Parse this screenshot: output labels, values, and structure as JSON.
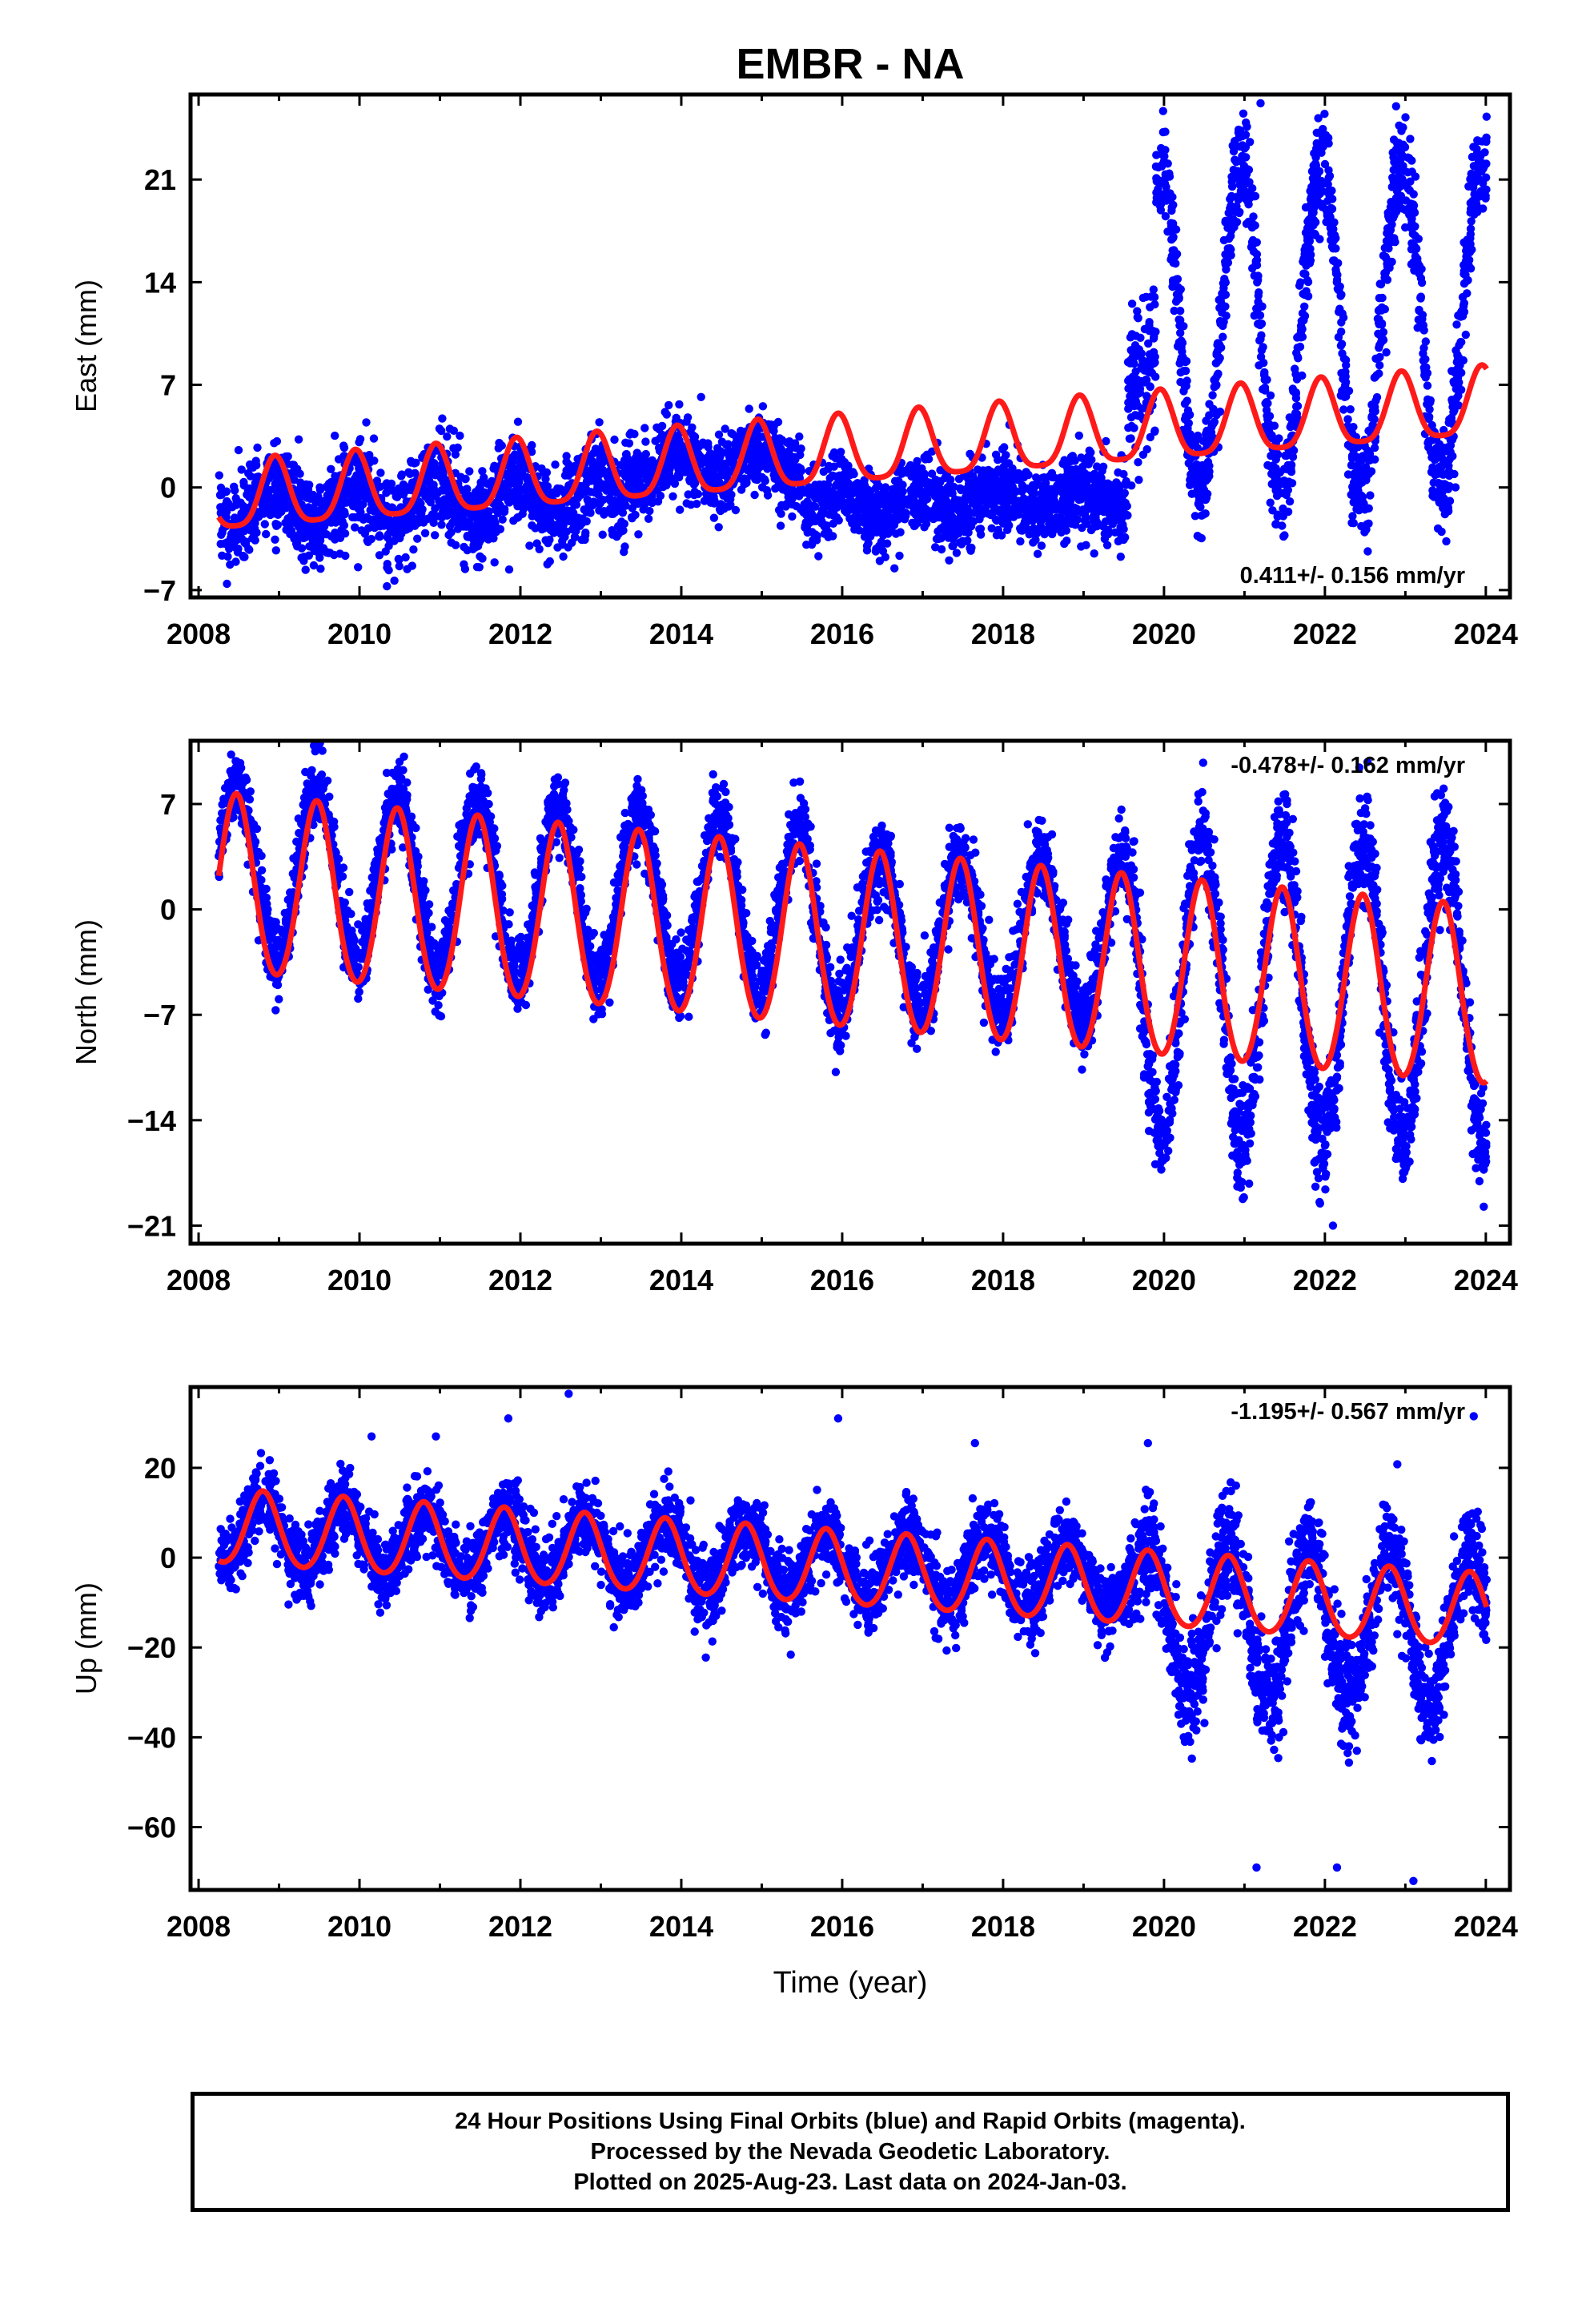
{
  "title": "EMBR - NA",
  "colors": {
    "final_orbits": "#0000ff",
    "model_fit": "#ff1a1a",
    "axes": "#000000"
  },
  "xlabel": "Time (year)",
  "footer": {
    "line1": "24 Hour Positions Using Final Orbits (blue) and Rapid Orbits (magenta).",
    "line2": "Processed by the Nevada Geodetic Laboratory.",
    "line3": "Plotted on 2025-Aug-23. Last data on 2024-Jan-03."
  },
  "chart_data": [
    {
      "type": "scatter",
      "ylabel": "East (mm)",
      "rate_label": "0.411+/- 0.156 mm/yr",
      "rate_position": "bottom-right",
      "xlim": [
        2007.9,
        2024.3
      ],
      "ylim": [
        -7.5,
        26.8
      ],
      "xticks": [
        "2008",
        "2010",
        "2012",
        "2014",
        "2016",
        "2018",
        "2020",
        "2022",
        "2024"
      ],
      "yticks": [
        "-7",
        "0",
        "7",
        "14",
        "21"
      ],
      "grid": false,
      "data_start": 2008.25,
      "data_end": 2024.01,
      "segments": [
        {
          "x": [
            2008.25,
            2013.3
          ],
          "base": [
            -1.3,
            -0.5
          ],
          "seasonal_amp": 1.4,
          "scatter": 1.5
        },
        {
          "x": [
            2013.3,
            2015.5
          ],
          "base": [
            1.3,
            1.8
          ],
          "seasonal_amp": 0.8,
          "scatter": 1.3
        },
        {
          "x": [
            2015.5,
            2019.55
          ],
          "base": [
            -1.3,
            -0.7
          ],
          "seasonal_amp": 0.7,
          "scatter": 1.3
        },
        {
          "x": [
            2019.55,
            2019.9
          ],
          "base": [
            6.0,
            9.0
          ],
          "seasonal_amp": 0.0,
          "scatter": 2.5
        },
        {
          "x": [
            2019.9,
            2024.01
          ],
          "base": [
            10.5,
            11.0
          ],
          "seasonal_amp": 11.0,
          "scatter": 1.8
        }
      ],
      "model": {
        "x0": 2008.25,
        "y0": -0.9,
        "trend": 0.411,
        "annual_amp": 2.3,
        "annual_peak_phase": 0.95,
        "semiannual_amp": 0.5
      },
      "outliers": [
        {
          "x": 2019.7,
          "y": 9.0
        },
        {
          "x": 2021.2,
          "y": 26.2
        }
      ]
    },
    {
      "type": "scatter",
      "ylabel": "North (mm)",
      "rate_label": "-0.478+/- 0.162 mm/yr",
      "rate_position": "top-right",
      "xlim": [
        2007.9,
        2024.3
      ],
      "ylim": [
        -22.2,
        11.2
      ],
      "xticks": [
        "2008",
        "2010",
        "2012",
        "2014",
        "2016",
        "2018",
        "2020",
        "2022",
        "2024"
      ],
      "yticks": [
        "-21",
        "-14",
        "-7",
        "0",
        "7"
      ],
      "grid": false,
      "data_start": 2008.25,
      "data_end": 2024.01,
      "segments": [
        {
          "x": [
            2008.25,
            2015.6
          ],
          "base": [
            2.8,
            0.0
          ],
          "seasonal_amp": 5.6,
          "scatter": 1.2
        },
        {
          "x": [
            2015.6,
            2019.6
          ],
          "base": [
            -1.5,
            -2.2
          ],
          "seasonal_amp": 5.2,
          "scatter": 1.3
        },
        {
          "x": [
            2019.6,
            2024.01
          ],
          "base": [
            -5.0,
            -5.5
          ],
          "seasonal_amp": 10.0,
          "scatter": 1.8
        }
      ],
      "model": {
        "x0": 2008.25,
        "y0": 1.5,
        "trend": -0.478,
        "annual_amp": 5.9,
        "annual_peak_phase": 0.47,
        "semiannual_amp": 0.4
      },
      "outliers": [
        {
          "x": 2015.92,
          "y": -10.8
        },
        {
          "x": 2022.1,
          "y": -21.0
        },
        {
          "x": 2009.45,
          "y": 10.5
        }
      ]
    },
    {
      "type": "scatter",
      "ylabel": "Up (mm)",
      "rate_label": "-1.195+/- 0.567 mm/yr",
      "rate_position": "top-right",
      "xlim": [
        2007.9,
        2024.3
      ],
      "ylim": [
        -74.0,
        38.0
      ],
      "xticks": [
        "2008",
        "2010",
        "2012",
        "2014",
        "2016",
        "2018",
        "2020",
        "2022",
        "2024"
      ],
      "yticks": [
        "-60",
        "-40",
        "-20",
        "0",
        "20"
      ],
      "grid": false,
      "data_start": 2008.25,
      "data_end": 2024.01,
      "segments": [
        {
          "x": [
            2008.25,
            2019.6
          ],
          "base": [
            6.0,
            -5.0
          ],
          "seasonal_amp": 7.5,
          "scatter": 4.0
        },
        {
          "x": [
            2019.6,
            2024.01
          ],
          "base": [
            -14.0,
            -16.0
          ],
          "seasonal_amp": 17.0,
          "scatter": 6.0
        }
      ],
      "model": {
        "x0": 2008.25,
        "y0": 6.5,
        "trend": -1.195,
        "annual_amp": 8.2,
        "annual_peak_phase": 0.8,
        "semiannual_amp": 0.8
      },
      "outliers": [
        {
          "x": 2012.6,
          "y": 36.5
        },
        {
          "x": 2011.85,
          "y": 31.0
        },
        {
          "x": 2015.95,
          "y": 31.0
        },
        {
          "x": 2017.65,
          "y": 25.5
        },
        {
          "x": 2019.8,
          "y": 25.5
        },
        {
          "x": 2023.85,
          "y": 31.5
        },
        {
          "x": 2010.15,
          "y": 27.0
        },
        {
          "x": 2010.95,
          "y": 27.0
        },
        {
          "x": 2022.9,
          "y": 20.8
        },
        {
          "x": 2023.1,
          "y": -72.0
        },
        {
          "x": 2021.15,
          "y": -69.0
        },
        {
          "x": 2022.15,
          "y": -69.0
        }
      ]
    }
  ]
}
